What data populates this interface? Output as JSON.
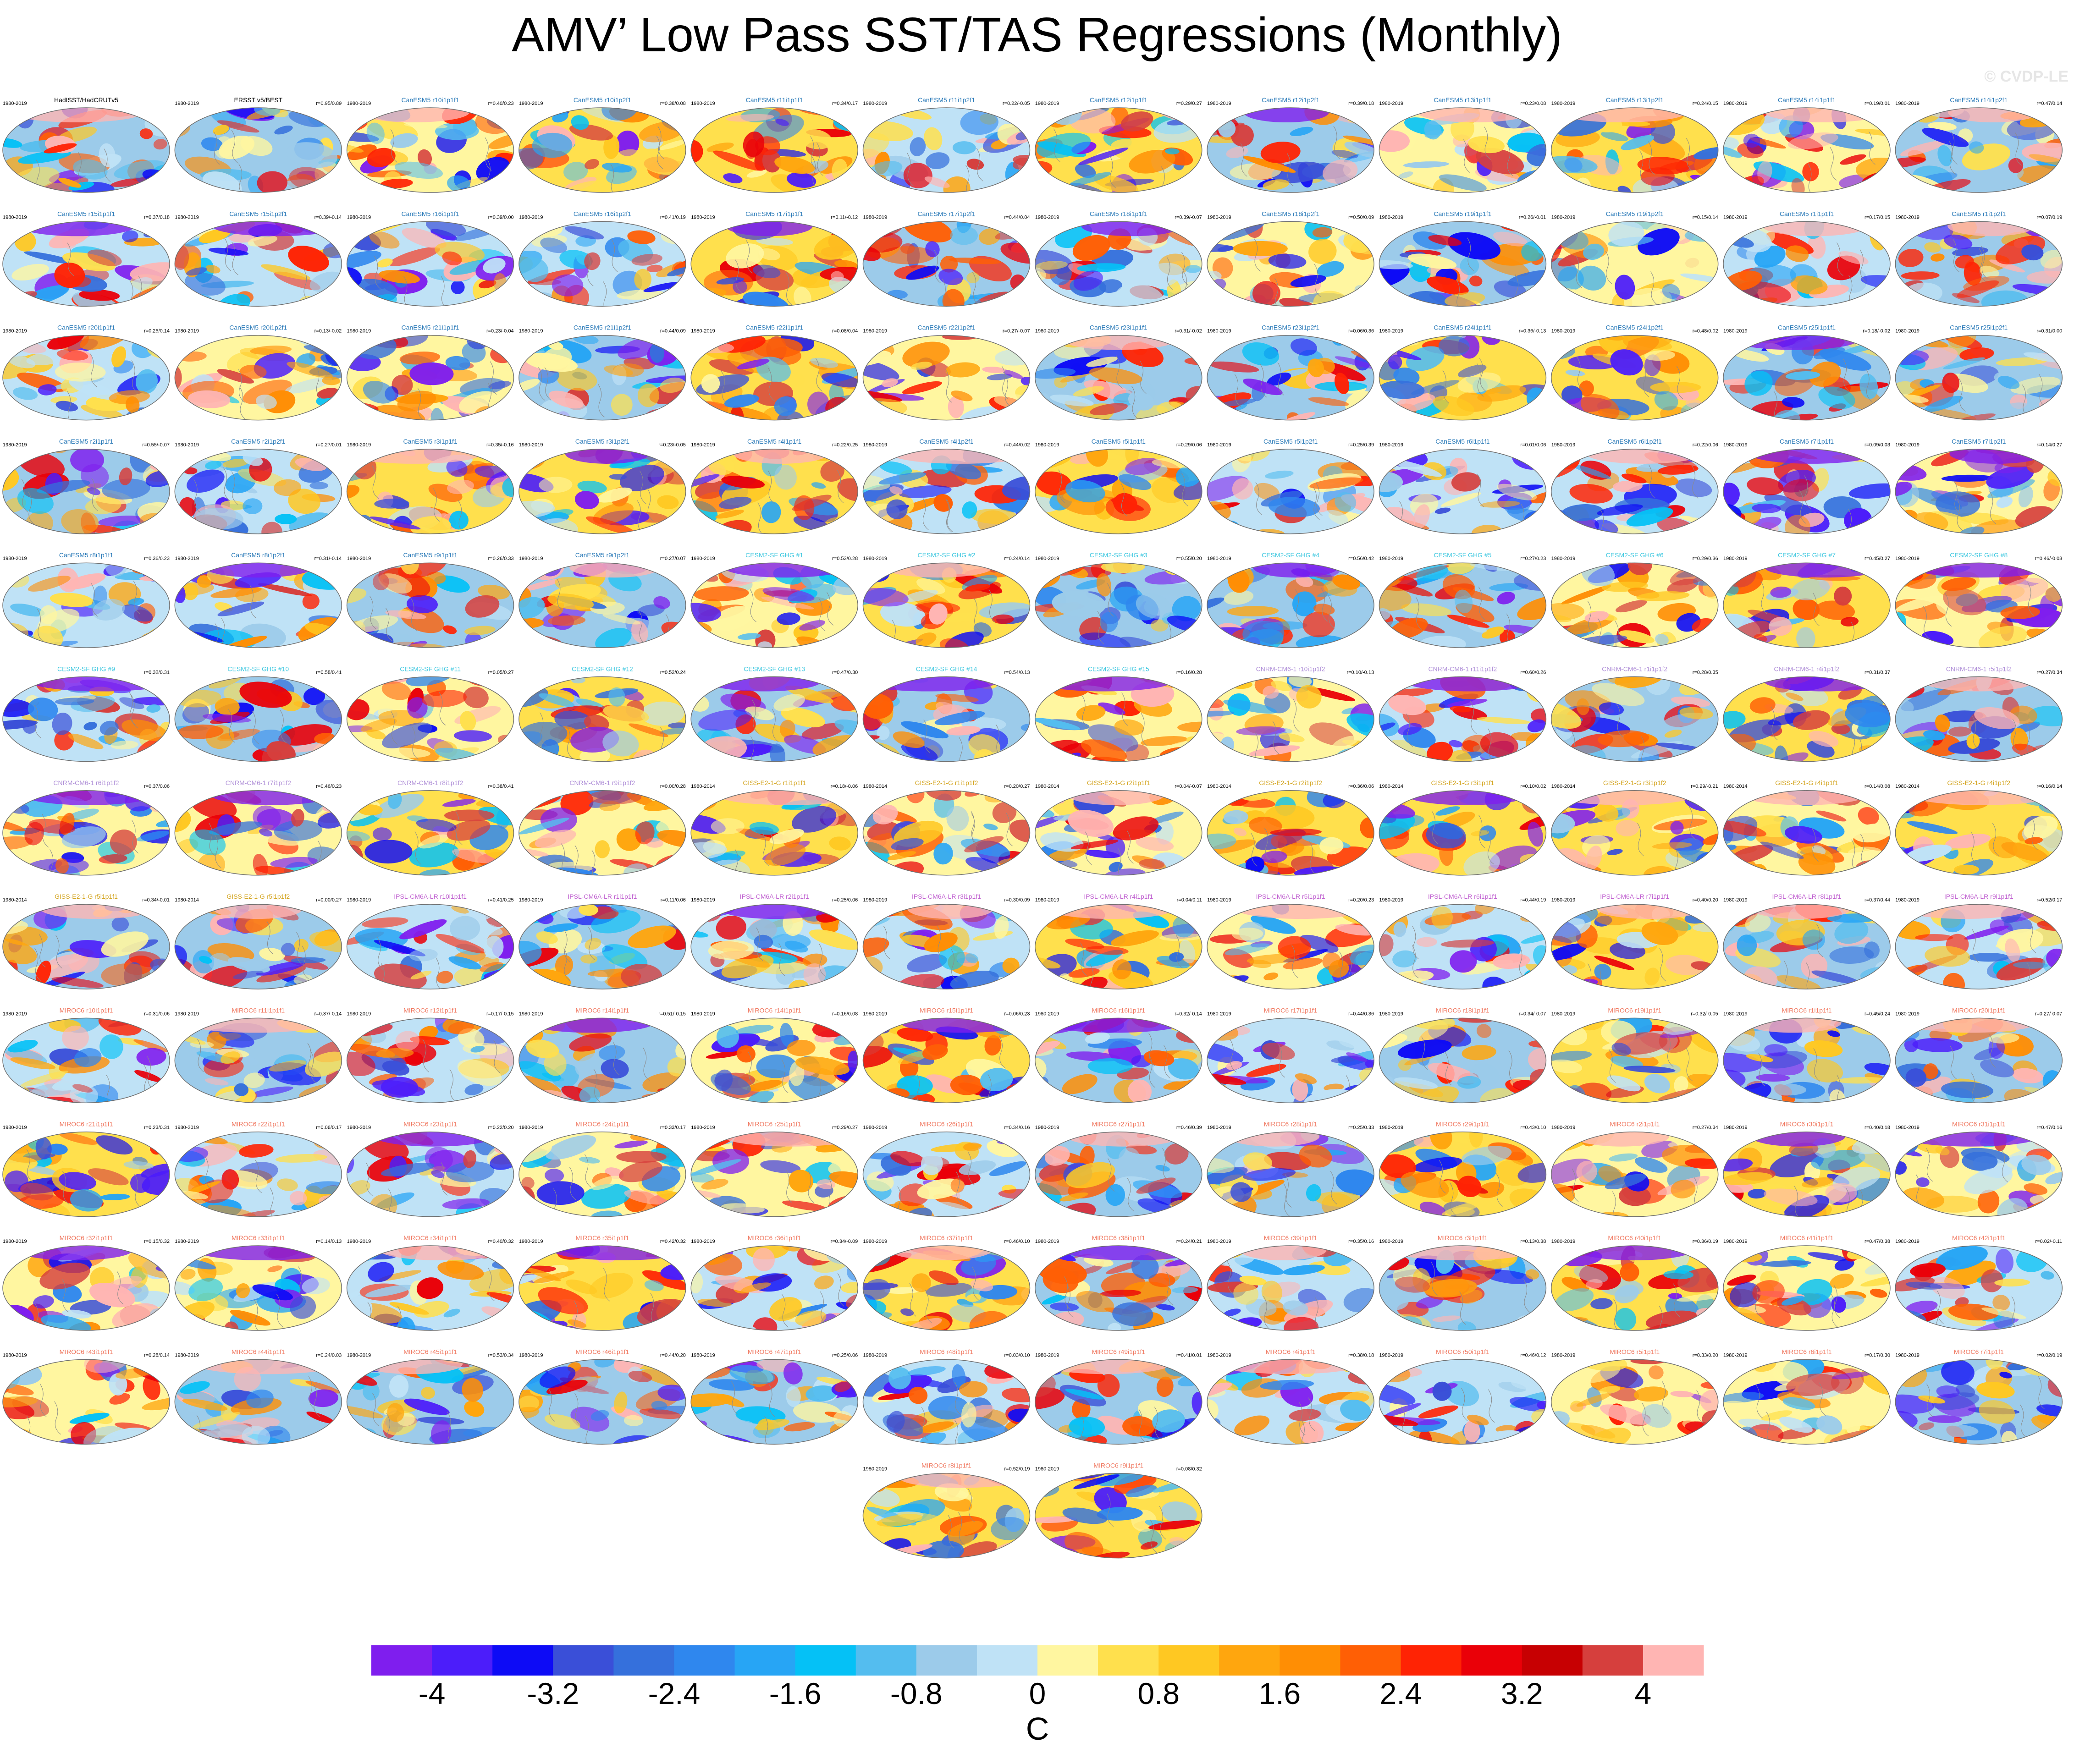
{
  "title": "AMV’ Low Pass SST/TAS Regressions (Monthly)",
  "watermark": "© CVDP-LE",
  "colorbar": {
    "colors": [
      "#7f1eee",
      "#4c1dfa",
      "#0d0bf6",
      "#3a4fd8",
      "#3570dc",
      "#2f87ee",
      "#27a5f5",
      "#05c1f6",
      "#54bdef",
      "#9ccbea",
      "#bfe2f6",
      "#fff6a0",
      "#ffe04d",
      "#ffc822",
      "#ffa60e",
      "#ff8e04",
      "#ff5f05",
      "#ff2304",
      "#ea0008",
      "#c70002",
      "#d63f3d",
      "#ffb5b3"
    ],
    "tick_labels": [
      "-4",
      "-3.2",
      "-2.4",
      "-1.6",
      "-0.8",
      "0",
      "0.8",
      "1.6",
      "2.4",
      "3.2",
      "4"
    ],
    "units": "C"
  },
  "panels": [
    {
      "name": "HadISST/HadCRUTv5",
      "years": "1980-2019",
      "stat": "",
      "color": "#000000"
    },
    {
      "name": "ERSST v5/BEST",
      "years": "1980-2019",
      "stat": "r=0.95/0.89",
      "color": "#000000"
    },
    {
      "name": "CanESM5 r10i1p1f1",
      "years": "1980-2019",
      "stat": "r=0.40/0.23",
      "color": "#2a7ab8"
    },
    {
      "name": "CanESM5 r10i1p2f1",
      "years": "1980-2019",
      "stat": "r=0.38/0.08",
      "color": "#2a7ab8"
    },
    {
      "name": "CanESM5 r11i1p1f1",
      "years": "1980-2019",
      "stat": "r=0.34/0.17",
      "color": "#2a7ab8"
    },
    {
      "name": "CanESM5 r11i1p2f1",
      "years": "1980-2019",
      "stat": "r=0.22/-0.05",
      "color": "#2a7ab8"
    },
    {
      "name": "CanESM5 r12i1p1f1",
      "years": "1980-2019",
      "stat": "r=0.29/0.27",
      "color": "#2a7ab8"
    },
    {
      "name": "CanESM5 r12i1p2f1",
      "years": "1980-2019",
      "stat": "r=0.39/0.18",
      "color": "#2a7ab8"
    },
    {
      "name": "CanESM5 r13i1p1f1",
      "years": "1980-2019",
      "stat": "r=0.23/0.08",
      "color": "#2a7ab8"
    },
    {
      "name": "CanESM5 r13i1p2f1",
      "years": "1980-2019",
      "stat": "r=0.24/0.15",
      "color": "#2a7ab8"
    },
    {
      "name": "CanESM5 r14i1p1f1",
      "years": "1980-2019",
      "stat": "r=0.19/0.01",
      "color": "#2a7ab8"
    },
    {
      "name": "CanESM5 r14i1p2f1",
      "years": "1980-2019",
      "stat": "r=0.47/0.14",
      "color": "#2a7ab8"
    },
    {
      "name": "CanESM5 r15i1p1f1",
      "years": "1980-2019",
      "stat": "r=0.37/0.18",
      "color": "#2a7ab8"
    },
    {
      "name": "CanESM5 r15i1p2f1",
      "years": "1980-2019",
      "stat": "r=0.39/-0.14",
      "color": "#2a7ab8"
    },
    {
      "name": "CanESM5 r16i1p1f1",
      "years": "1980-2019",
      "stat": "r=0.39/0.00",
      "color": "#2a7ab8"
    },
    {
      "name": "CanESM5 r16i1p2f1",
      "years": "1980-2019",
      "stat": "r=0.41/0.19",
      "color": "#2a7ab8"
    },
    {
      "name": "CanESM5 r17i1p1f1",
      "years": "1980-2019",
      "stat": "r=0.11/-0.12",
      "color": "#2a7ab8"
    },
    {
      "name": "CanESM5 r17i1p2f1",
      "years": "1980-2019",
      "stat": "r=0.44/0.04",
      "color": "#2a7ab8"
    },
    {
      "name": "CanESM5 r18i1p1f1",
      "years": "1980-2019",
      "stat": "r=0.39/-0.07",
      "color": "#2a7ab8"
    },
    {
      "name": "CanESM5 r18i1p2f1",
      "years": "1980-2019",
      "stat": "r=0.50/0.09",
      "color": "#2a7ab8"
    },
    {
      "name": "CanESM5 r19i1p1f1",
      "years": "1980-2019",
      "stat": "r=0.26/-0.01",
      "color": "#2a7ab8"
    },
    {
      "name": "CanESM5 r19i1p2f1",
      "years": "1980-2019",
      "stat": "r=0.15/0.14",
      "color": "#2a7ab8"
    },
    {
      "name": "CanESM5 r1i1p1f1",
      "years": "1980-2019",
      "stat": "r=0.17/0.15",
      "color": "#2a7ab8"
    },
    {
      "name": "CanESM5 r1i1p2f1",
      "years": "1980-2019",
      "stat": "r=0.07/0.19",
      "color": "#2a7ab8"
    },
    {
      "name": "CanESM5 r20i1p1f1",
      "years": "1980-2019",
      "stat": "r=0.25/0.14",
      "color": "#2a7ab8"
    },
    {
      "name": "CanESM5 r20i1p2f1",
      "years": "1980-2019",
      "stat": "r=0.13/-0.02",
      "color": "#2a7ab8"
    },
    {
      "name": "CanESM5 r21i1p1f1",
      "years": "1980-2019",
      "stat": "r=0.23/-0.04",
      "color": "#2a7ab8"
    },
    {
      "name": "CanESM5 r21i1p2f1",
      "years": "1980-2019",
      "stat": "r=0.44/0.09",
      "color": "#2a7ab8"
    },
    {
      "name": "CanESM5 r22i1p1f1",
      "years": "1980-2019",
      "stat": "r=0.08/0.04",
      "color": "#2a7ab8"
    },
    {
      "name": "CanESM5 r22i1p2f1",
      "years": "1980-2019",
      "stat": "r=0.27/-0.07",
      "color": "#2a7ab8"
    },
    {
      "name": "CanESM5 r23i1p1f1",
      "years": "1980-2019",
      "stat": "r=0.31/-0.02",
      "color": "#2a7ab8"
    },
    {
      "name": "CanESM5 r23i1p2f1",
      "years": "1980-2019",
      "stat": "r=0.06/0.36",
      "color": "#2a7ab8"
    },
    {
      "name": "CanESM5 r24i1p1f1",
      "years": "1980-2019",
      "stat": "r=0.36/-0.13",
      "color": "#2a7ab8"
    },
    {
      "name": "CanESM5 r24i1p2f1",
      "years": "1980-2019",
      "stat": "r=0.48/0.02",
      "color": "#2a7ab8"
    },
    {
      "name": "CanESM5 r25i1p1f1",
      "years": "1980-2019",
      "stat": "r=0.18/-0.02",
      "color": "#2a7ab8"
    },
    {
      "name": "CanESM5 r25i1p2f1",
      "years": "1980-2019",
      "stat": "r=0.31/0.00",
      "color": "#2a7ab8"
    },
    {
      "name": "CanESM5 r2i1p1f1",
      "years": "1980-2019",
      "stat": "r=0.55/-0.07",
      "color": "#2a7ab8"
    },
    {
      "name": "CanESM5 r2i1p2f1",
      "years": "1980-2019",
      "stat": "r=0.27/0.01",
      "color": "#2a7ab8"
    },
    {
      "name": "CanESM5 r3i1p1f1",
      "years": "1980-2019",
      "stat": "r=0.35/-0.16",
      "color": "#2a7ab8"
    },
    {
      "name": "CanESM5 r3i1p2f1",
      "years": "1980-2019",
      "stat": "r=0.23/-0.05",
      "color": "#2a7ab8"
    },
    {
      "name": "CanESM5 r4i1p1f1",
      "years": "1980-2019",
      "stat": "r=0.22/0.25",
      "color": "#2a7ab8"
    },
    {
      "name": "CanESM5 r4i1p2f1",
      "years": "1980-2019",
      "stat": "r=0.44/0.02",
      "color": "#2a7ab8"
    },
    {
      "name": "CanESM5 r5i1p1f1",
      "years": "1980-2019",
      "stat": "r=0.29/0.06",
      "color": "#2a7ab8"
    },
    {
      "name": "CanESM5 r5i1p2f1",
      "years": "1980-2019",
      "stat": "r=0.25/0.39",
      "color": "#2a7ab8"
    },
    {
      "name": "CanESM5 r6i1p1f1",
      "years": "1980-2019",
      "stat": "r=0.01/0.06",
      "color": "#2a7ab8"
    },
    {
      "name": "CanESM5 r6i1p2f1",
      "years": "1980-2019",
      "stat": "r=0.22/0.06",
      "color": "#2a7ab8"
    },
    {
      "name": "CanESM5 r7i1p1f1",
      "years": "1980-2019",
      "stat": "r=0.09/0.03",
      "color": "#2a7ab8"
    },
    {
      "name": "CanESM5 r7i1p2f1",
      "years": "1980-2019",
      "stat": "r=0.14/0.27",
      "color": "#2a7ab8"
    },
    {
      "name": "CanESM5 r8i1p1f1",
      "years": "1980-2019",
      "stat": "r=0.36/0.23",
      "color": "#2a7ab8"
    },
    {
      "name": "CanESM5 r8i1p2f1",
      "years": "1980-2019",
      "stat": "r=0.31/-0.14",
      "color": "#2a7ab8"
    },
    {
      "name": "CanESM5 r9i1p1f1",
      "years": "1980-2019",
      "stat": "r=0.26/0.33",
      "color": "#2a7ab8"
    },
    {
      "name": "CanESM5 r9i1p2f1",
      "years": "1980-2019",
      "stat": "r=0.27/0.07",
      "color": "#2a7ab8"
    },
    {
      "name": "CESM2-SF GHG #1",
      "years": "1980-2019",
      "stat": "r=0.53/0.28",
      "color": "#40c8e0"
    },
    {
      "name": "CESM2-SF GHG #2",
      "years": "1980-2019",
      "stat": "r=0.24/0.14",
      "color": "#40c8e0"
    },
    {
      "name": "CESM2-SF GHG #3",
      "years": "1980-2019",
      "stat": "r=0.55/0.20",
      "color": "#40c8e0"
    },
    {
      "name": "CESM2-SF GHG #4",
      "years": "1980-2019",
      "stat": "r=0.56/0.42",
      "color": "#40c8e0"
    },
    {
      "name": "CESM2-SF GHG #5",
      "years": "1980-2019",
      "stat": "r=0.27/0.23",
      "color": "#40c8e0"
    },
    {
      "name": "CESM2-SF GHG #6",
      "years": "1980-2019",
      "stat": "r=0.29/0.36",
      "color": "#40c8e0"
    },
    {
      "name": "CESM2-SF GHG #7",
      "years": "1980-2019",
      "stat": "r=0.45/0.27",
      "color": "#40c8e0"
    },
    {
      "name": "CESM2-SF GHG #8",
      "years": "1980-2019",
      "stat": "r=0.46/-0.03",
      "color": "#40c8e0"
    },
    {
      "name": "CESM2-SF GHG #9",
      "years": "",
      "stat": "r=0.32/0.31",
      "color": "#40c8e0"
    },
    {
      "name": "CESM2-SF GHG #10",
      "years": "",
      "stat": "r=0.58/0.41",
      "color": "#40c8e0"
    },
    {
      "name": "CESM2-SF GHG #11",
      "years": "",
      "stat": "r=0.05/0.27",
      "color": "#40c8e0"
    },
    {
      "name": "CESM2-SF GHG #12",
      "years": "",
      "stat": "r=0.52/0.24",
      "color": "#40c8e0"
    },
    {
      "name": "CESM2-SF GHG #13",
      "years": "",
      "stat": "r=0.47/0.30",
      "color": "#40c8e0"
    },
    {
      "name": "CESM2-SF GHG #14",
      "years": "",
      "stat": "r=0.54/0.13",
      "color": "#40c8e0"
    },
    {
      "name": "CESM2-SF GHG #15",
      "years": "",
      "stat": "r=0.16/0.28",
      "color": "#40c8e0"
    },
    {
      "name": "CNRM-CM6-1 r10i1p1f2",
      "years": "",
      "stat": "r=0.10/-0.13",
      "color": "#b090d8"
    },
    {
      "name": "CNRM-CM6-1 r11i1p1f2",
      "years": "",
      "stat": "r=0.60/0.26",
      "color": "#b090d8"
    },
    {
      "name": "CNRM-CM6-1 r1i1p1f2",
      "years": "",
      "stat": "r=0.28/0.35",
      "color": "#b090d8"
    },
    {
      "name": "CNRM-CM6-1 r4i1p1f2",
      "years": "",
      "stat": "r=0.31/0.37",
      "color": "#b090d8"
    },
    {
      "name": "CNRM-CM6-1 r5i1p1f2",
      "years": "",
      "stat": "r=0.27/0.34",
      "color": "#b090d8"
    },
    {
      "name": "CNRM-CM6-1 r6i1p1f2",
      "years": "",
      "stat": "r=0.37/0.06",
      "color": "#b090d8"
    },
    {
      "name": "CNRM-CM6-1 r7i1p1f2",
      "years": "",
      "stat": "r=0.46/0.23",
      "color": "#b090d8"
    },
    {
      "name": "CNRM-CM6-1 r8i1p1f2",
      "years": "",
      "stat": "r=0.38/0.41",
      "color": "#b090d8"
    },
    {
      "name": "CNRM-CM6-1 r9i1p1f2",
      "years": "",
      "stat": "r=0.00/0.28",
      "color": "#b090d8"
    },
    {
      "name": "GISS-E2-1-G r1i1p1f1",
      "years": "1980-2014",
      "stat": "r=0.18/-0.06",
      "color": "#d4a520"
    },
    {
      "name": "GISS-E2-1-G r1i1p1f2",
      "years": "1980-2014",
      "stat": "r=0.20/0.27",
      "color": "#d4a520"
    },
    {
      "name": "GISS-E2-1-G r2i1p1f1",
      "years": "1980-2014",
      "stat": "r=0.04/-0.07",
      "color": "#d4a520"
    },
    {
      "name": "GISS-E2-1-G r2i1p1f2",
      "years": "1980-2014",
      "stat": "r=0.36/0.06",
      "color": "#d4a520"
    },
    {
      "name": "GISS-E2-1-G r3i1p1f1",
      "years": "1980-2014",
      "stat": "r=0.10/0.02",
      "color": "#d4a520"
    },
    {
      "name": "GISS-E2-1-G r3i1p1f2",
      "years": "1980-2014",
      "stat": "r=0.29/-0.21",
      "color": "#d4a520"
    },
    {
      "name": "GISS-E2-1-G r4i1p1f1",
      "years": "1980-2014",
      "stat": "r=0.14/0.08",
      "color": "#d4a520"
    },
    {
      "name": "GISS-E2-1-G r4i1p1f2",
      "years": "1980-2014",
      "stat": "r=0.16/0.14",
      "color": "#d4a520"
    },
    {
      "name": "GISS-E2-1-G r5i1p1f1",
      "years": "1980-2014",
      "stat": "r=0.34/-0.01",
      "color": "#d4a520"
    },
    {
      "name": "GISS-E2-1-G r5i1p1f2",
      "years": "1980-2014",
      "stat": "r=0.00/0.27",
      "color": "#d4a520"
    },
    {
      "name": "IPSL-CM6A-LR r10i1p1f1",
      "years": "1980-2019",
      "stat": "r=0.41/0.25",
      "color": "#c060d0"
    },
    {
      "name": "IPSL-CM6A-LR r1i1p1f1",
      "years": "1980-2019",
      "stat": "r=0.11/0.06",
      "color": "#c060d0"
    },
    {
      "name": "IPSL-CM6A-LR r2i1p1f1",
      "years": "1980-2019",
      "stat": "r=0.25/0.06",
      "color": "#c060d0"
    },
    {
      "name": "IPSL-CM6A-LR r3i1p1f1",
      "years": "1980-2019",
      "stat": "r=0.30/0.09",
      "color": "#c060d0"
    },
    {
      "name": "IPSL-CM6A-LR r4i1p1f1",
      "years": "1980-2019",
      "stat": "r=0.04/0.11",
      "color": "#c060d0"
    },
    {
      "name": "IPSL-CM6A-LR r5i1p1f1",
      "years": "1980-2019",
      "stat": "r=0.20/0.23",
      "color": "#c060d0"
    },
    {
      "name": "IPSL-CM6A-LR r6i1p1f1",
      "years": "1980-2019",
      "stat": "r=0.44/0.19",
      "color": "#c060d0"
    },
    {
      "name": "IPSL-CM6A-LR r7i1p1f1",
      "years": "1980-2019",
      "stat": "r=0.40/0.20",
      "color": "#c060d0"
    },
    {
      "name": "IPSL-CM6A-LR r8i1p1f1",
      "years": "1980-2019",
      "stat": "r=0.37/0.44",
      "color": "#c060d0"
    },
    {
      "name": "IPSL-CM6A-LR r9i1p1f1",
      "years": "1980-2019",
      "stat": "r=0.52/0.17",
      "color": "#c060d0"
    },
    {
      "name": "MIROC6 r10i1p1f1",
      "years": "1980-2019",
      "stat": "r=0.31/0.06",
      "color": "#f07860"
    },
    {
      "name": "MIROC6 r11i1p1f1",
      "years": "1980-2019",
      "stat": "r=0.37/-0.14",
      "color": "#f07860"
    },
    {
      "name": "MIROC6 r12i1p1f1",
      "years": "1980-2019",
      "stat": "r=0.17/-0.15",
      "color": "#f07860"
    },
    {
      "name": "MIROC6 r14i1p1f1",
      "years": "1980-2019",
      "stat": "r=0.51/-0.15",
      "color": "#f07860"
    },
    {
      "name": "MIROC6 r14i1p1f1",
      "years": "1980-2019",
      "stat": "r=0.16/0.08",
      "color": "#f07860"
    },
    {
      "name": "MIROC6 r15i1p1f1",
      "years": "1980-2019",
      "stat": "r=0.06/0.23",
      "color": "#f07860"
    },
    {
      "name": "MIROC6 r16i1p1f1",
      "years": "1980-2019",
      "stat": "r=0.32/-0.14",
      "color": "#f07860"
    },
    {
      "name": "MIROC6 r17i1p1f1",
      "years": "1980-2019",
      "stat": "r=0.44/0.36",
      "color": "#f07860"
    },
    {
      "name": "MIROC6 r18i1p1f1",
      "years": "1980-2019",
      "stat": "r=0.34/-0.07",
      "color": "#f07860"
    },
    {
      "name": "MIROC6 r19i1p1f1",
      "years": "1980-2019",
      "stat": "r=0.32/-0.05",
      "color": "#f07860"
    },
    {
      "name": "MIROC6 r1i1p1f1",
      "years": "1980-2019",
      "stat": "r=0.45/0.24",
      "color": "#f07860"
    },
    {
      "name": "MIROC6 r20i1p1f1",
      "years": "1980-2019",
      "stat": "r=0.27/-0.07",
      "color": "#f07860"
    },
    {
      "name": "MIROC6 r21i1p1f1",
      "years": "1980-2019",
      "stat": "r=0.23/0.31",
      "color": "#f07860"
    },
    {
      "name": "MIROC6 r22i1p1f1",
      "years": "1980-2019",
      "stat": "r=0.06/0.17",
      "color": "#f07860"
    },
    {
      "name": "MIROC6 r23i1p1f1",
      "years": "1980-2019",
      "stat": "r=0.22/0.20",
      "color": "#f07860"
    },
    {
      "name": "MIROC6 r24i1p1f1",
      "years": "1980-2019",
      "stat": "r=0.33/0.17",
      "color": "#f07860"
    },
    {
      "name": "MIROC6 r25i1p1f1",
      "years": "1980-2019",
      "stat": "r=0.29/0.27",
      "color": "#f07860"
    },
    {
      "name": "MIROC6 r26i1p1f1",
      "years": "1980-2019",
      "stat": "r=0.34/0.16",
      "color": "#f07860"
    },
    {
      "name": "MIROC6 r27i1p1f1",
      "years": "1980-2019",
      "stat": "r=0.46/0.39",
      "color": "#f07860"
    },
    {
      "name": "MIROC6 r28i1p1f1",
      "years": "1980-2019",
      "stat": "r=0.25/0.33",
      "color": "#f07860"
    },
    {
      "name": "MIROC6 r29i1p1f1",
      "years": "1980-2019",
      "stat": "r=0.43/0.10",
      "color": "#f07860"
    },
    {
      "name": "MIROC6 r2i1p1f1",
      "years": "1980-2019",
      "stat": "r=0.27/0.34",
      "color": "#f07860"
    },
    {
      "name": "MIROC6 r30i1p1f1",
      "years": "1980-2019",
      "stat": "r=0.40/0.18",
      "color": "#f07860"
    },
    {
      "name": "MIROC6 r31i1p1f1",
      "years": "1980-2019",
      "stat": "r=0.47/0.16",
      "color": "#f07860"
    },
    {
      "name": "MIROC6 r32i1p1f1",
      "years": "1980-2019",
      "stat": "r=0.15/0.32",
      "color": "#f07860"
    },
    {
      "name": "MIROC6 r33i1p1f1",
      "years": "1980-2019",
      "stat": "r=0.14/0.13",
      "color": "#f07860"
    },
    {
      "name": "MIROC6 r34i1p1f1",
      "years": "1980-2019",
      "stat": "r=0.40/0.32",
      "color": "#f07860"
    },
    {
      "name": "MIROC6 r35i1p1f1",
      "years": "1980-2019",
      "stat": "r=0.42/0.32",
      "color": "#f07860"
    },
    {
      "name": "MIROC6 r36i1p1f1",
      "years": "1980-2019",
      "stat": "r=0.34/-0.09",
      "color": "#f07860"
    },
    {
      "name": "MIROC6 r37i1p1f1",
      "years": "1980-2019",
      "stat": "r=0.46/0.10",
      "color": "#f07860"
    },
    {
      "name": "MIROC6 r38i1p1f1",
      "years": "1980-2019",
      "stat": "r=0.24/0.21",
      "color": "#f07860"
    },
    {
      "name": "MIROC6 r39i1p1f1",
      "years": "1980-2019",
      "stat": "r=0.35/0.16",
      "color": "#f07860"
    },
    {
      "name": "MIROC6 r3i1p1f1",
      "years": "1980-2019",
      "stat": "r=0.13/0.38",
      "color": "#f07860"
    },
    {
      "name": "MIROC6 r40i1p1f1",
      "years": "1980-2019",
      "stat": "r=0.36/0.19",
      "color": "#f07860"
    },
    {
      "name": "MIROC6 r41i1p1f1",
      "years": "1980-2019",
      "stat": "r=0.47/0.38",
      "color": "#f07860"
    },
    {
      "name": "MIROC6 r42i1p1f1",
      "years": "1980-2019",
      "stat": "r=0.02/-0.11",
      "color": "#f07860"
    },
    {
      "name": "MIROC6 r43i1p1f1",
      "years": "1980-2019",
      "stat": "r=0.28/0.14",
      "color": "#f07860"
    },
    {
      "name": "MIROC6 r44i1p1f1",
      "years": "1980-2019",
      "stat": "r=0.24/0.03",
      "color": "#f07860"
    },
    {
      "name": "MIROC6 r45i1p1f1",
      "years": "1980-2019",
      "stat": "r=0.53/0.34",
      "color": "#f07860"
    },
    {
      "name": "MIROC6 r46i1p1f1",
      "years": "1980-2019",
      "stat": "r=0.44/0.20",
      "color": "#f07860"
    },
    {
      "name": "MIROC6 r47i1p1f1",
      "years": "1980-2019",
      "stat": "r=0.25/0.06",
      "color": "#f07860"
    },
    {
      "name": "MIROC6 r48i1p1f1",
      "years": "1980-2019",
      "stat": "r=0.03/0.10",
      "color": "#f07860"
    },
    {
      "name": "MIROC6 r49i1p1f1",
      "years": "1980-2019",
      "stat": "r=0.41/0.01",
      "color": "#f07860"
    },
    {
      "name": "MIROC6 r4i1p1f1",
      "years": "1980-2019",
      "stat": "r=0.38/0.18",
      "color": "#f07860"
    },
    {
      "name": "MIROC6 r50i1p1f1",
      "years": "1980-2019",
      "stat": "r=0.46/0.12",
      "color": "#f07860"
    },
    {
      "name": "MIROC6 r5i1p1f1",
      "years": "1980-2019",
      "stat": "r=0.33/0.20",
      "color": "#f07860"
    },
    {
      "name": "MIROC6 r6i1p1f1",
      "years": "1980-2019",
      "stat": "r=0.17/0.30",
      "color": "#f07860"
    },
    {
      "name": "MIROC6 r7i1p1f1",
      "years": "1980-2019",
      "stat": "r=0.02/0.19",
      "color": "#f07860"
    },
    {
      "name": "MIROC6 r8i1p1f1",
      "years": "1980-2019",
      "stat": "r=0.52/0.19",
      "color": "#f07860"
    },
    {
      "name": "MIROC6 r9i1p1f1",
      "years": "1980-2019",
      "stat": "r=0.08/0.32",
      "color": "#f07860"
    }
  ]
}
